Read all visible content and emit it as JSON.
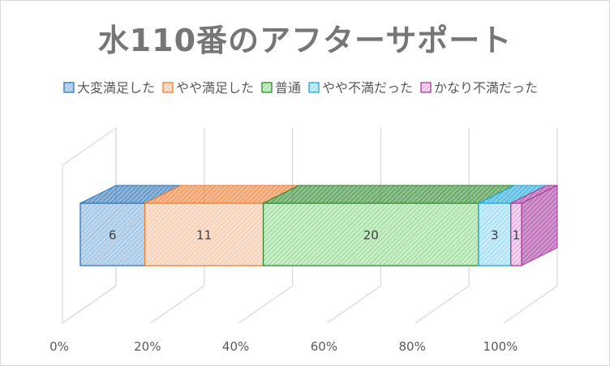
{
  "chart_data": {
    "type": "bar",
    "orientation": "horizontal-stacked-100",
    "title": "水110番のアフターサポート",
    "categories": [
      ""
    ],
    "series": [
      {
        "name": "大変満足した",
        "values": [
          6
        ],
        "color": "#2e75b6",
        "fill": "#bdd7ee"
      },
      {
        "name": "やや満足した",
        "values": [
          11
        ],
        "color": "#ed7d31",
        "fill": "#fbe0cf"
      },
      {
        "name": "普通",
        "values": [
          20
        ],
        "color": "#2f8a2f",
        "fill": "#c6efc6"
      },
      {
        "name": "やや不満だった",
        "values": [
          3
        ],
        "color": "#1fa6d8",
        "fill": "#c8ecfa"
      },
      {
        "name": "かなり不満だった",
        "values": [
          1
        ],
        "color": "#a83ca0",
        "fill": "#f2d2ef"
      }
    ],
    "x_ticks": [
      "0%",
      "20%",
      "40%",
      "60%",
      "80%",
      "100%"
    ],
    "xlim": [
      0,
      100
    ],
    "grid": true,
    "legend": "top",
    "data_labels": true,
    "style": "3d"
  }
}
